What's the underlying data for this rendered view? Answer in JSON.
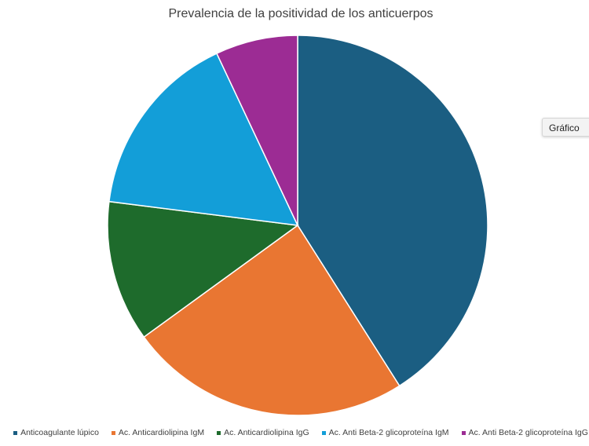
{
  "side_button": {
    "label": "Gráfico"
  },
  "chart_data": {
    "type": "pie",
    "title": "Prevalencia de la positividad de los anticuerpos",
    "legend_position": "bottom",
    "categories": [
      "Anticoagulante lúpico",
      "Ac. Anticardiolipina IgM",
      "Ac. Anticardiolipina IgG",
      "Ac. Anti Beta-2 glicoproteína IgM",
      "Ac. Anti Beta-2 glicoproteína IgG"
    ],
    "values": [
      41,
      24,
      12,
      16,
      7
    ],
    "colors": [
      "#1b5e82",
      "#e97632",
      "#1e6b2c",
      "#139ed8",
      "#9c2c94"
    ]
  }
}
